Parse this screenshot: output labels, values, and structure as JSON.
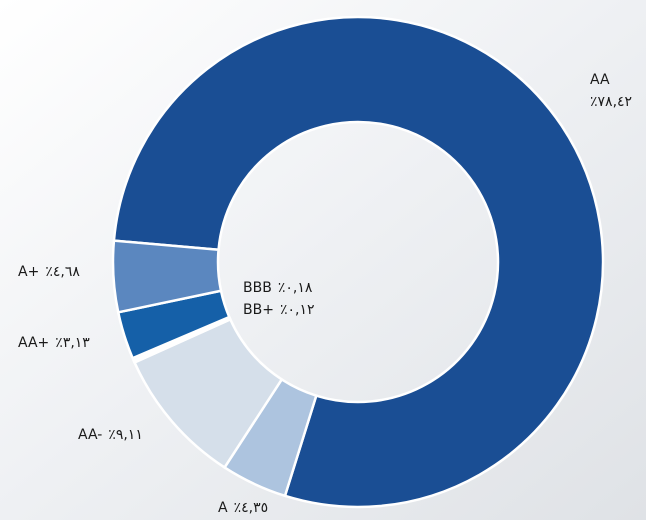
{
  "chart_data": {
    "type": "donut",
    "categories": [
      "AA",
      "A",
      "AA-",
      "BB+",
      "BBB",
      "AA+",
      "A+"
    ],
    "values": [
      78.42,
      4.35,
      9.11,
      0.12,
      0.18,
      3.13,
      4.68
    ],
    "value_labels": [
      "٪٧٨,٤٢",
      "٪٤,٣٥",
      "٪٩,١١",
      "٪٠,١٢",
      "٪٠,١٨",
      "٪٣,١٣",
      "٪٤,٦٨"
    ],
    "colors": [
      "#1a4e94",
      "#adc4df",
      "#d5dfea",
      "#e8eef5",
      "#f2f5f9",
      "#1560a8",
      "#5b87bf"
    ]
  }
}
